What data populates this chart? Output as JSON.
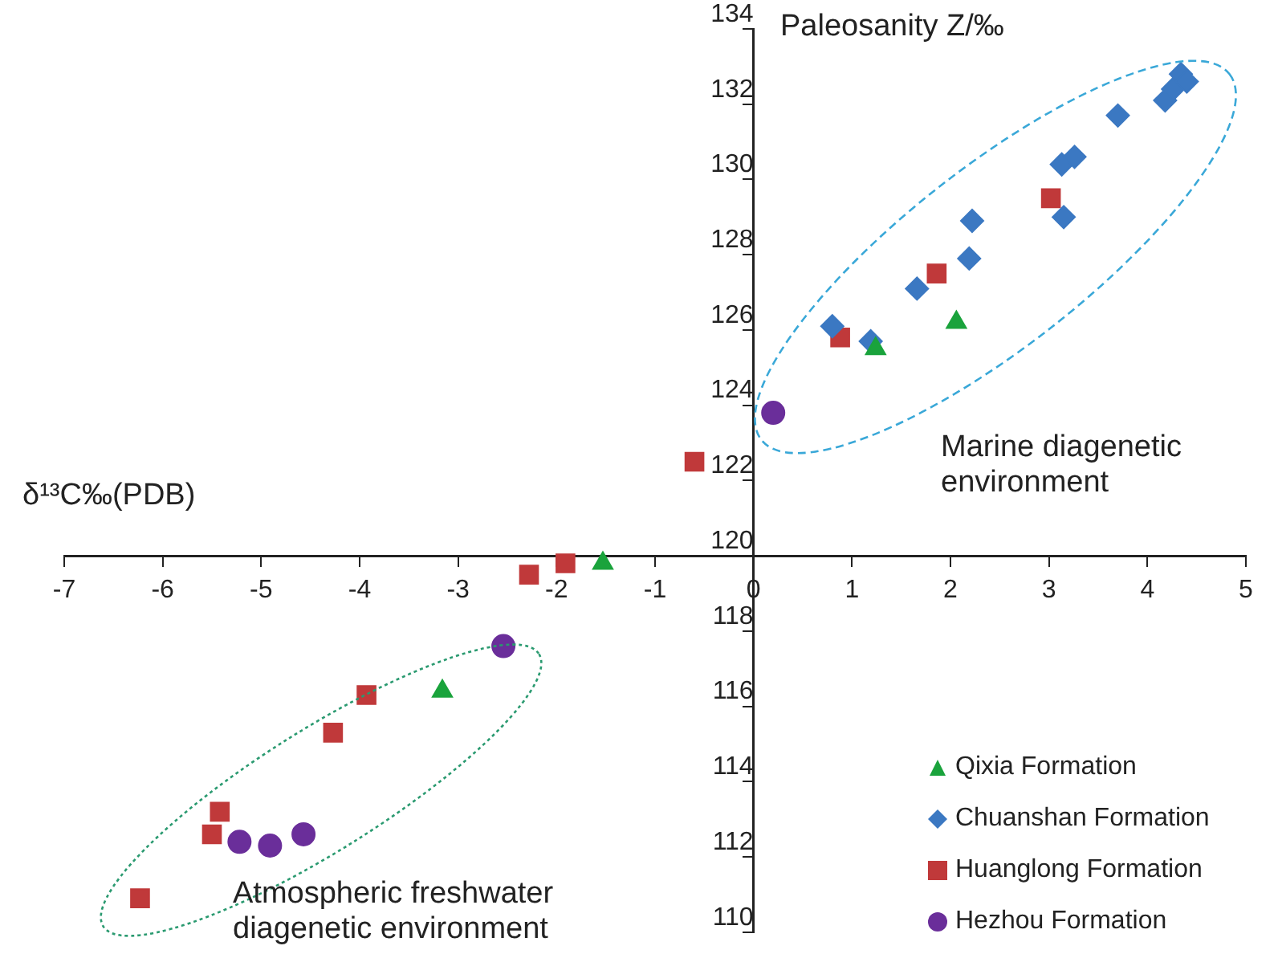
{
  "chart_data": {
    "type": "scatter",
    "xlabel": "δ¹³C‰(PDB)",
    "ylabel": "Paleosanity Z/‰",
    "xlim": [
      -7,
      5
    ],
    "xticks": [
      -7,
      -6,
      -5,
      -4,
      -3,
      -2,
      -1,
      0,
      1,
      2,
      3,
      4,
      5
    ],
    "ylim": [
      110,
      134
    ],
    "yticks": [
      110,
      112,
      114,
      116,
      118,
      120,
      122,
      124,
      126,
      128,
      130,
      132,
      134
    ],
    "grid": false,
    "legend": "bottom right",
    "annotations": [
      "Marine diagenetic environment",
      "Atmospheric freshwater diagenetic environment"
    ],
    "series": [
      {
        "name": "Qixia Formation",
        "color": "#1aa33c",
        "marker": "triangle",
        "x": [
          1.24,
          2.06,
          -1.53,
          -3.16
        ],
        "values": [
          125.5,
          126.2,
          119.8,
          116.4
        ]
      },
      {
        "name": "Chuanshan Formation",
        "color": "#3b78c2",
        "marker": "diamond",
        "x": [
          0.8,
          1.19,
          1.66,
          2.19,
          2.22,
          3.13,
          3.26,
          3.15,
          3.7,
          4.18,
          4.26,
          4.34,
          4.4
        ],
        "values": [
          126.1,
          125.7,
          127.1,
          127.9,
          128.9,
          130.4,
          130.6,
          129.0,
          131.7,
          132.1,
          132.4,
          132.8,
          132.6
        ]
      },
      {
        "name": "Huanglong Formation",
        "color": "#c0393a",
        "marker": "square",
        "x": [
          0.88,
          1.86,
          3.02,
          -0.6,
          -2.28,
          -1.91,
          -3.93,
          -4.27,
          -5.42,
          -5.5,
          -6.23
        ],
        "values": [
          125.8,
          127.5,
          129.5,
          122.5,
          119.5,
          119.8,
          116.3,
          115.3,
          113.2,
          112.6,
          110.9
        ]
      },
      {
        "name": "Hezhou Formation",
        "color": "#6a2e9a",
        "marker": "circle",
        "x": [
          0.2,
          -2.54,
          -5.22,
          -4.91,
          -4.57
        ],
        "values": [
          123.8,
          117.6,
          112.4,
          112.3,
          112.6
        ]
      }
    ]
  }
}
